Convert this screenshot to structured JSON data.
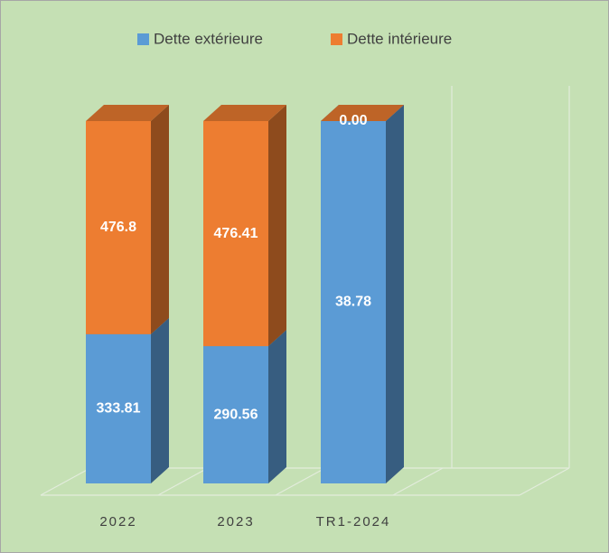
{
  "chart_data": {
    "type": "bar",
    "stacking": "percent",
    "categories": [
      "2022",
      "2023",
      "TR1-2024"
    ],
    "series": [
      {
        "name": "Dette extérieure",
        "color": "#5b9bd5",
        "values": [
          333.81,
          290.56,
          38.78
        ]
      },
      {
        "name": "Dette intérieure",
        "color": "#ed7d31",
        "values": [
          476.8,
          476.41,
          0
        ],
        "value_labels": [
          "476.8",
          "476.41",
          "0.00"
        ]
      }
    ],
    "legend": "top"
  }
}
